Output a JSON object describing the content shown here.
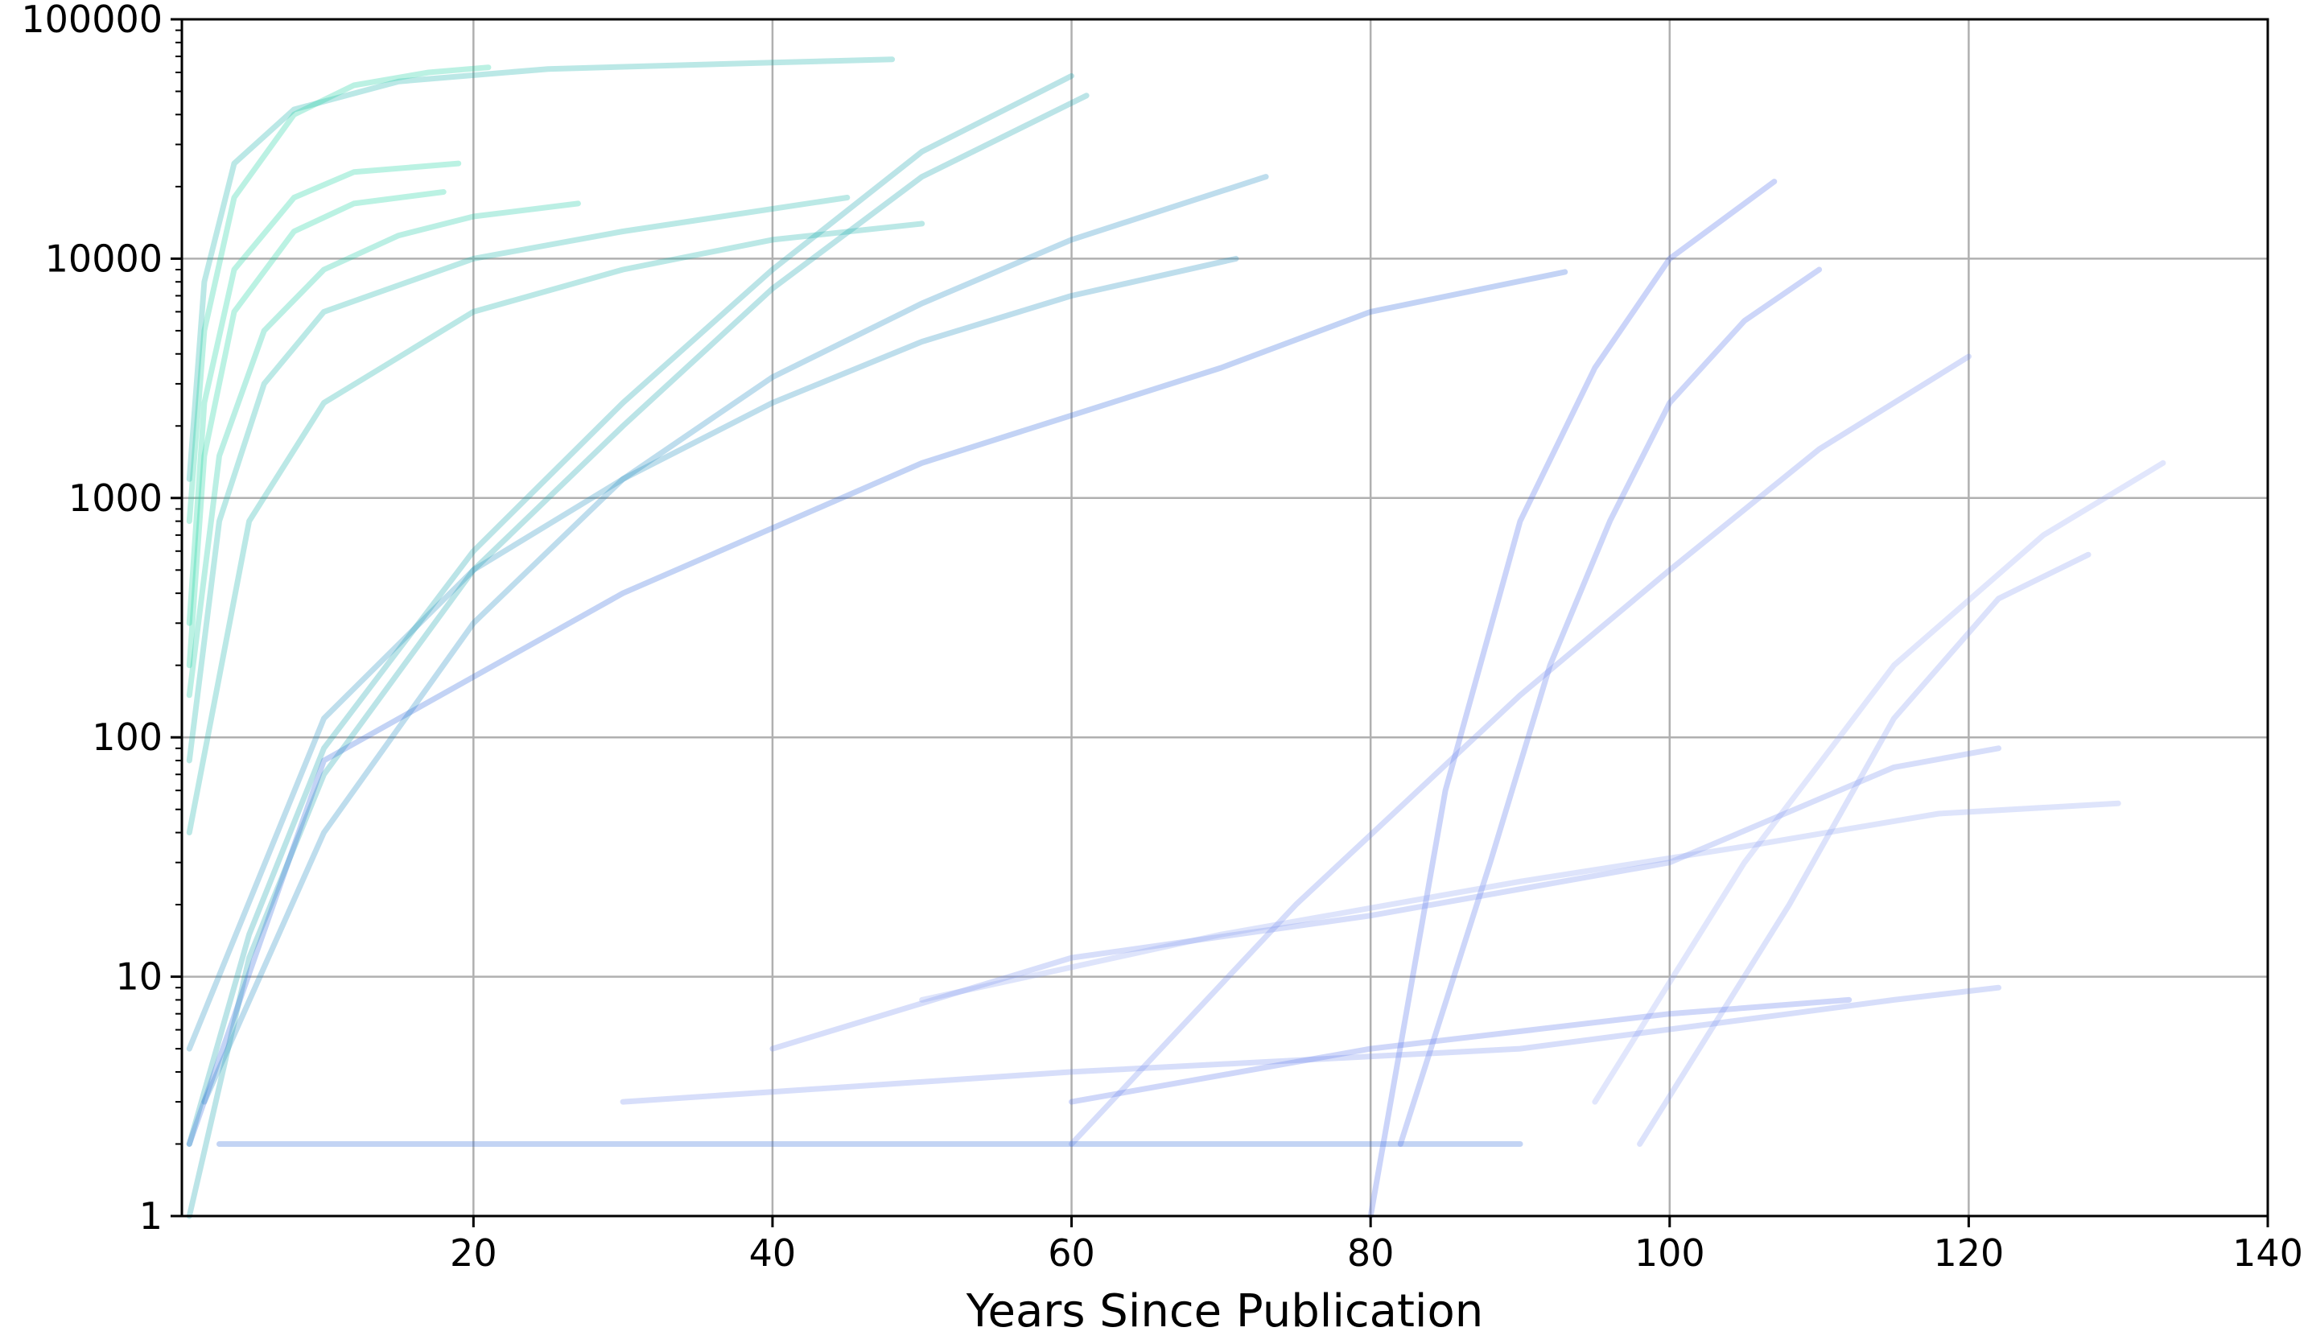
{
  "chart_data": {
    "type": "line",
    "title": "",
    "xlabel": "Years Since Publication",
    "ylabel": "",
    "x_scale": "linear",
    "y_scale": "log",
    "xlim": [
      0.5,
      140
    ],
    "ylim": [
      1,
      100000
    ],
    "x_ticks": [
      20,
      40,
      60,
      80,
      100,
      120,
      140
    ],
    "x_tick_labels": [
      "20",
      "40",
      "60",
      "80",
      "100",
      "120",
      "140"
    ],
    "y_ticks": [
      1,
      10,
      100,
      1000,
      10000,
      100000
    ],
    "y_tick_labels": [
      "1",
      "10",
      "100",
      "1000",
      "10000",
      "100000"
    ],
    "grid": true,
    "legend": "none",
    "color_scale": {
      "note": "line colour by age of paper",
      "young": "#1fe89a",
      "mid": "#1ea7b0",
      "old": "#3f60e8",
      "oldest": "#9fb0f5"
    },
    "line_alpha": 0.22,
    "series": [
      {
        "age": 48,
        "x": [
          1,
          2,
          4,
          8,
          15,
          25,
          40,
          48
        ],
        "y": [
          1200,
          8000,
          25000,
          42000,
          55000,
          62000,
          66000,
          68000
        ]
      },
      {
        "age": 21,
        "x": [
          1,
          2,
          4,
          8,
          12,
          17,
          21
        ],
        "y": [
          800,
          5000,
          18000,
          40000,
          53000,
          60000,
          63000
        ]
      },
      {
        "age": 60,
        "x": [
          1,
          5,
          10,
          20,
          30,
          40,
          50,
          60
        ],
        "y": [
          2,
          15,
          90,
          600,
          2500,
          9000,
          28000,
          58000
        ]
      },
      {
        "age": 61,
        "x": [
          1,
          5,
          10,
          20,
          30,
          40,
          50,
          61
        ],
        "y": [
          1,
          12,
          70,
          500,
          2000,
          7500,
          22000,
          48000
        ]
      },
      {
        "age": 19,
        "x": [
          1,
          2,
          4,
          8,
          12,
          19
        ],
        "y": [
          300,
          2500,
          9000,
          18000,
          23000,
          25000
        ]
      },
      {
        "age": 18,
        "x": [
          1,
          2,
          4,
          8,
          12,
          18
        ],
        "y": [
          200,
          1500,
          6000,
          13000,
          17000,
          19000
        ]
      },
      {
        "age": 73,
        "x": [
          2,
          10,
          20,
          30,
          40,
          50,
          60,
          73
        ],
        "y": [
          3,
          40,
          300,
          1200,
          3200,
          6500,
          12000,
          22000
        ]
      },
      {
        "age": 107,
        "x": [
          80,
          85,
          90,
          95,
          100,
          107
        ],
        "y": [
          1,
          60,
          800,
          3500,
          10000,
          21000
        ]
      },
      {
        "age": 110,
        "x": [
          82,
          88,
          92,
          96,
          100,
          105,
          110
        ],
        "y": [
          2,
          30,
          200,
          800,
          2500,
          5500,
          9000
        ]
      },
      {
        "age": 27,
        "x": [
          1,
          3,
          6,
          10,
          15,
          20,
          27
        ],
        "y": [
          150,
          1500,
          5000,
          9000,
          12500,
          15000,
          17000
        ]
      },
      {
        "age": 45,
        "x": [
          1,
          3,
          6,
          10,
          20,
          30,
          45
        ],
        "y": [
          80,
          800,
          3000,
          6000,
          10000,
          13000,
          18000
        ]
      },
      {
        "age": 50,
        "x": [
          1,
          5,
          10,
          20,
          30,
          40,
          50
        ],
        "y": [
          40,
          800,
          2500,
          6000,
          9000,
          12000,
          14000
        ]
      },
      {
        "age": 93,
        "x": [
          1,
          10,
          30,
          50,
          70,
          80,
          93
        ],
        "y": [
          2,
          80,
          400,
          1400,
          3500,
          6000,
          8800
        ]
      },
      {
        "age": 71,
        "x": [
          1,
          10,
          20,
          30,
          40,
          50,
          60,
          71
        ],
        "y": [
          5,
          120,
          500,
          1200,
          2500,
          4500,
          7000,
          10000
        ]
      },
      {
        "age": 120,
        "x": [
          60,
          75,
          90,
          100,
          110,
          120
        ],
        "y": [
          2,
          20,
          150,
          500,
          1600,
          3900
        ]
      },
      {
        "age": 133,
        "x": [
          95,
          105,
          115,
          125,
          133
        ],
        "y": [
          3,
          30,
          200,
          700,
          1400
        ]
      },
      {
        "age": 128,
        "x": [
          98,
          108,
          115,
          122,
          128
        ],
        "y": [
          2,
          20,
          120,
          380,
          580
        ]
      },
      {
        "age": 122,
        "x": [
          40,
          60,
          80,
          100,
          115,
          122
        ],
        "y": [
          5,
          12,
          18,
          30,
          75,
          90
        ]
      },
      {
        "age": 130,
        "x": [
          50,
          70,
          90,
          105,
          118,
          130
        ],
        "y": [
          8,
          15,
          25,
          35,
          48,
          53
        ]
      },
      {
        "age": 122,
        "x": [
          30,
          60,
          90,
          108,
          115,
          122
        ],
        "y": [
          3,
          4,
          5,
          7,
          8,
          9
        ]
      },
      {
        "age": 90,
        "x": [
          3,
          10,
          20,
          40,
          60,
          80,
          90
        ],
        "y": [
          2,
          2,
          2,
          2,
          2,
          2,
          2
        ]
      },
      {
        "age": 112,
        "x": [
          60,
          80,
          100,
          112
        ],
        "y": [
          3,
          5,
          7,
          8
        ]
      }
    ]
  }
}
